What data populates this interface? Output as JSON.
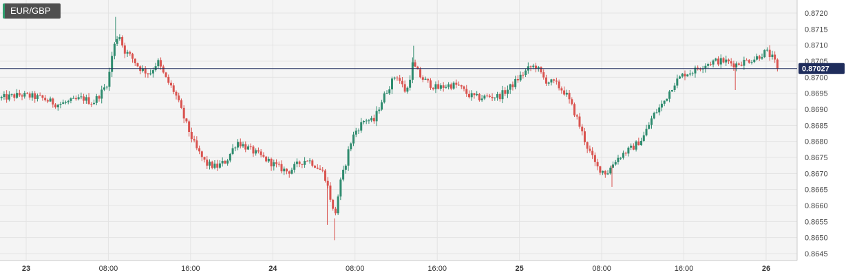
{
  "symbol": "EUR/GBP",
  "current_price_label": "0.87027",
  "colors": {
    "background": "#f4f4f4",
    "grid": "#e3e3e3",
    "up": "#2e8b6e",
    "down": "#d9534f",
    "price_line": "#1f2d5c",
    "axis_text": "#444444"
  },
  "chart_data": {
    "type": "candlestick",
    "title": "EUR/GBP",
    "ylim": [
      0.8645,
      0.8722
    ],
    "y_ticks": [
      "0.8720",
      "0.8715",
      "0.8710",
      "0.8705",
      "0.8700",
      "0.8695",
      "0.8690",
      "0.8685",
      "0.8680",
      "0.8675",
      "0.8670",
      "0.8665",
      "0.8660",
      "0.8655",
      "0.8650",
      "0.8645"
    ],
    "x_ticks": [
      {
        "label": "23",
        "hours": 0,
        "bold": true
      },
      {
        "label": "08:00",
        "hours": 8,
        "bold": false
      },
      {
        "label": "16:00",
        "hours": 16,
        "bold": false
      },
      {
        "label": "24",
        "hours": 24,
        "bold": true
      },
      {
        "label": "08:00",
        "hours": 32,
        "bold": false
      },
      {
        "label": "16:00",
        "hours": 40,
        "bold": false
      },
      {
        "label": "25",
        "hours": 48,
        "bold": true
      },
      {
        "label": "08:00",
        "hours": 56,
        "bold": false
      },
      {
        "label": "16:00",
        "hours": 64,
        "bold": false
      },
      {
        "label": "26",
        "hours": 72,
        "bold": true
      }
    ],
    "current_price": 0.87027,
    "x_range_hours": [
      -2.4,
      75.5
    ],
    "candle_interval_hours": 0.25,
    "path_close": [
      [
        -2.4,
        0.86935
      ],
      [
        -0.5,
        0.86945
      ],
      [
        1.5,
        0.86935
      ],
      [
        3,
        0.86915
      ],
      [
        4.5,
        0.86925
      ],
      [
        5.5,
        0.86935
      ],
      [
        6.5,
        0.8692
      ],
      [
        7.5,
        0.8696
      ],
      [
        8,
        0.8699
      ],
      [
        8.3,
        0.8706
      ],
      [
        8.6,
        0.871
      ],
      [
        9,
        0.8714
      ],
      [
        9.5,
        0.87085
      ],
      [
        10.3,
        0.8706
      ],
      [
        11,
        0.8703
      ],
      [
        12,
        0.8701
      ],
      [
        12.8,
        0.8705
      ],
      [
        13.5,
        0.87
      ],
      [
        14.5,
        0.8695
      ],
      [
        15.5,
        0.8686
      ],
      [
        16.5,
        0.8678
      ],
      [
        17.5,
        0.8673
      ],
      [
        18.5,
        0.8672
      ],
      [
        19.5,
        0.8674
      ],
      [
        20.5,
        0.868
      ],
      [
        21.5,
        0.8678
      ],
      [
        22.5,
        0.8676
      ],
      [
        23.5,
        0.8674
      ],
      [
        24.5,
        0.8672
      ],
      [
        25.5,
        0.86705
      ],
      [
        26.5,
        0.8673
      ],
      [
        27.3,
        0.86745
      ],
      [
        28,
        0.8673
      ],
      [
        29,
        0.867
      ],
      [
        29.5,
        0.8664
      ],
      [
        30,
        0.8656
      ],
      [
        30.5,
        0.8666
      ],
      [
        31,
        0.8672
      ],
      [
        31.5,
        0.8679
      ],
      [
        32,
        0.8683
      ],
      [
        33,
        0.8687
      ],
      [
        33.8,
        0.8686
      ],
      [
        34.5,
        0.8692
      ],
      [
        35.3,
        0.8697
      ],
      [
        36,
        0.8701
      ],
      [
        36.5,
        0.8698
      ],
      [
        37,
        0.8695
      ],
      [
        37.6,
        0.8704
      ],
      [
        38.4,
        0.87
      ],
      [
        39.2,
        0.8698
      ],
      [
        40,
        0.86965
      ],
      [
        41,
        0.86975
      ],
      [
        42,
        0.86975
      ],
      [
        43,
        0.86945
      ],
      [
        44,
        0.86935
      ],
      [
        45,
        0.8694
      ],
      [
        46,
        0.8694
      ],
      [
        47,
        0.86965
      ],
      [
        48,
        0.87
      ],
      [
        49,
        0.8703
      ],
      [
        49.6,
        0.87035
      ],
      [
        50.5,
        0.8699
      ],
      [
        51.5,
        0.8698
      ],
      [
        52.5,
        0.8695
      ],
      [
        53.5,
        0.8688
      ],
      [
        54.5,
        0.8679
      ],
      [
        55.5,
        0.8672
      ],
      [
        56.5,
        0.867
      ],
      [
        57.3,
        0.8674
      ],
      [
        58,
        0.8676
      ],
      [
        59,
        0.8678
      ],
      [
        60,
        0.8681
      ],
      [
        61,
        0.8688
      ],
      [
        62,
        0.8692
      ],
      [
        63,
        0.8698
      ],
      [
        64,
        0.8701
      ],
      [
        65,
        0.8702
      ],
      [
        66,
        0.8704
      ],
      [
        67,
        0.8705
      ],
      [
        68,
        0.8705
      ],
      [
        69,
        0.8704
      ],
      [
        70,
        0.8705
      ],
      [
        71,
        0.8706
      ],
      [
        72,
        0.8708
      ],
      [
        72.6,
        0.8706
      ],
      [
        73.2,
        0.87027
      ]
    ],
    "wicks": [
      {
        "hours": 8.7,
        "high": 0.87188
      },
      {
        "hours": 30.0,
        "low": 0.86492
      },
      {
        "hours": 29.3,
        "low": 0.8654
      },
      {
        "hours": 69.0,
        "low": 0.8696
      },
      {
        "hours": 57.0,
        "low": 0.86658
      },
      {
        "hours": 37.7,
        "high": 0.87098
      }
    ]
  }
}
